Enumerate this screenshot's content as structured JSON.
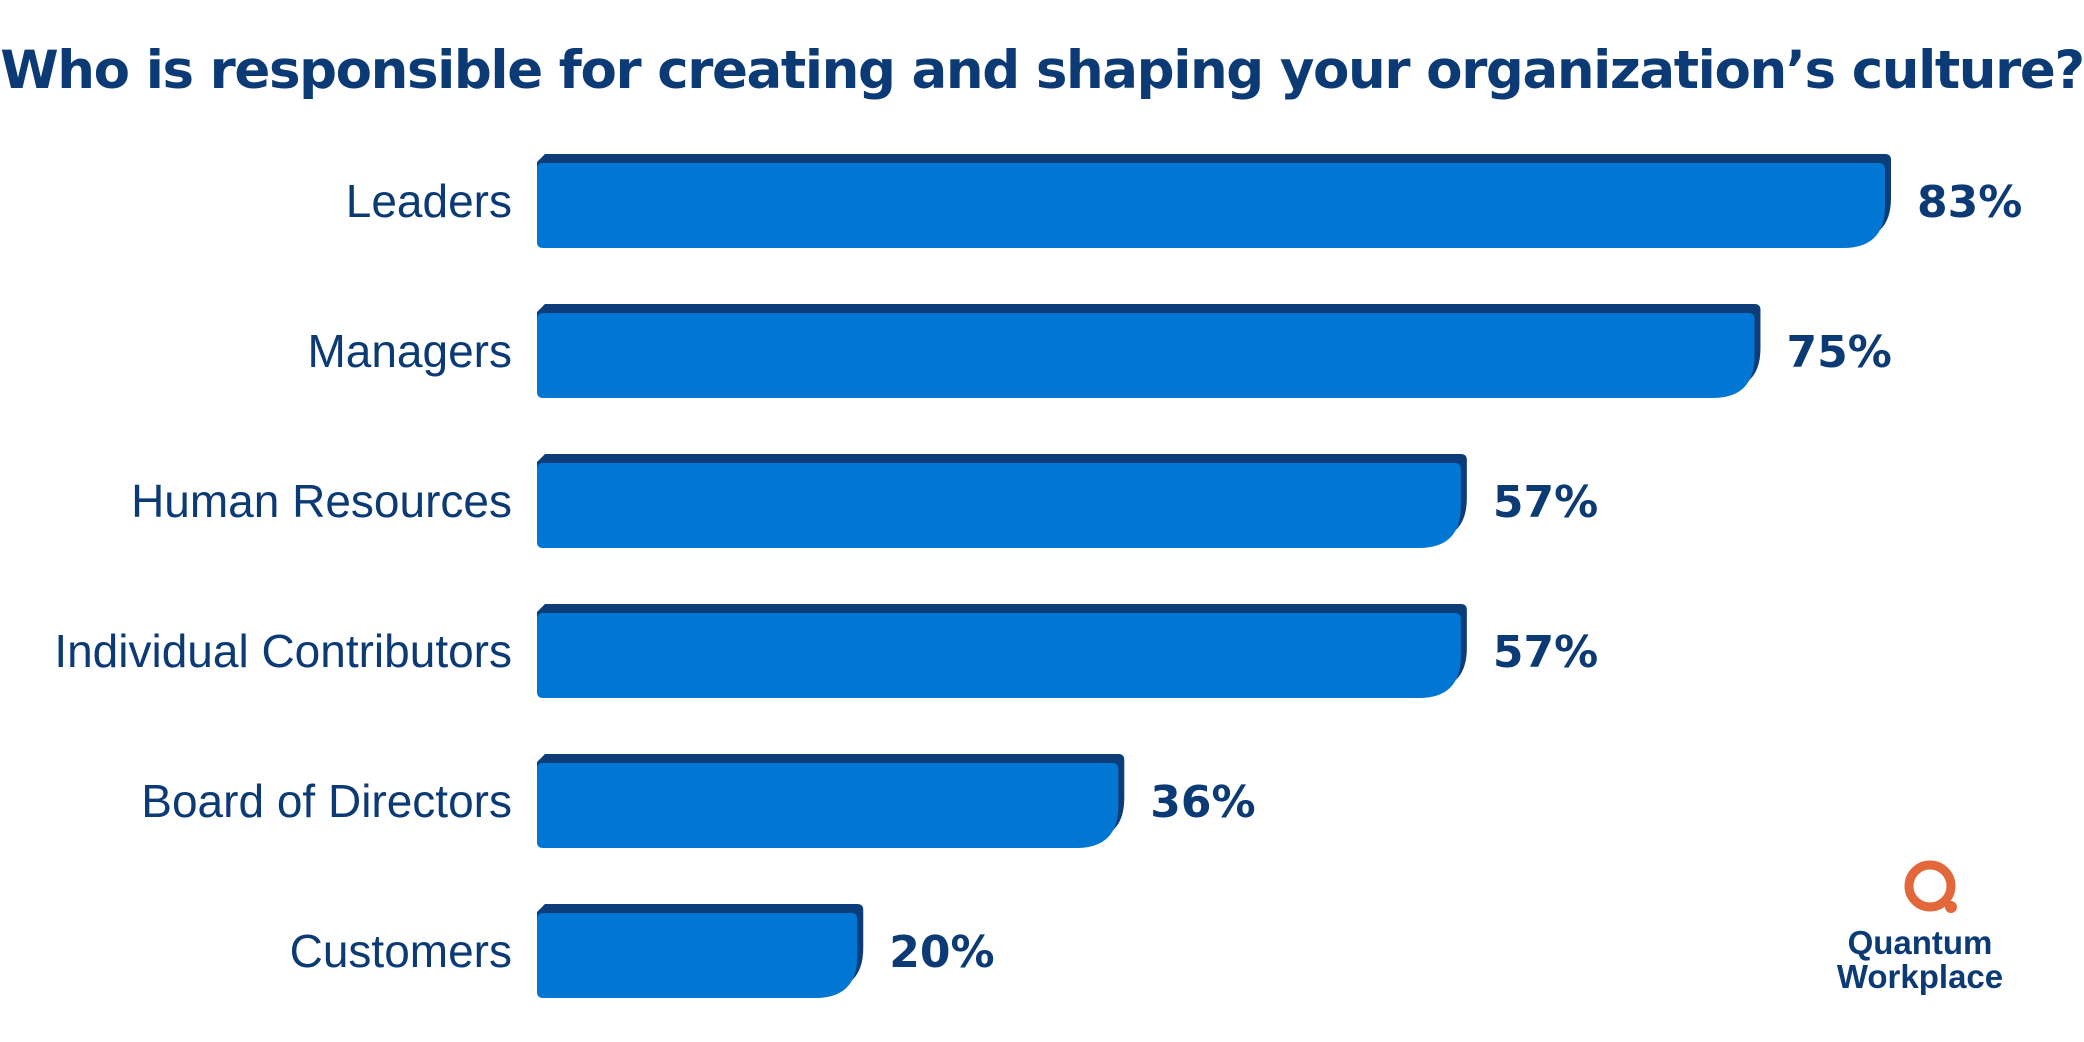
{
  "colors": {
    "bar": "#0176d3",
    "bar_edge": "#0d3d78",
    "text": "#0b3a75",
    "logo_accent": "#e2673a"
  },
  "logo": {
    "line1": "Quantum",
    "line2": "Workplace"
  },
  "chart_data": {
    "type": "bar",
    "orientation": "horizontal",
    "title": "Who is responsible for creating and shaping your organization’s culture?",
    "categories": [
      "Leaders",
      "Managers",
      "Human Resources",
      "Individual Contributors",
      "Board of Directors",
      "Customers"
    ],
    "values": [
      83,
      75,
      57,
      57,
      36,
      20
    ],
    "value_labels": [
      "83%",
      "75%",
      "57%",
      "57%",
      "36%",
      "20%"
    ],
    "unit": "%",
    "xlim": [
      0,
      100
    ],
    "grid": false,
    "legend": "none"
  }
}
